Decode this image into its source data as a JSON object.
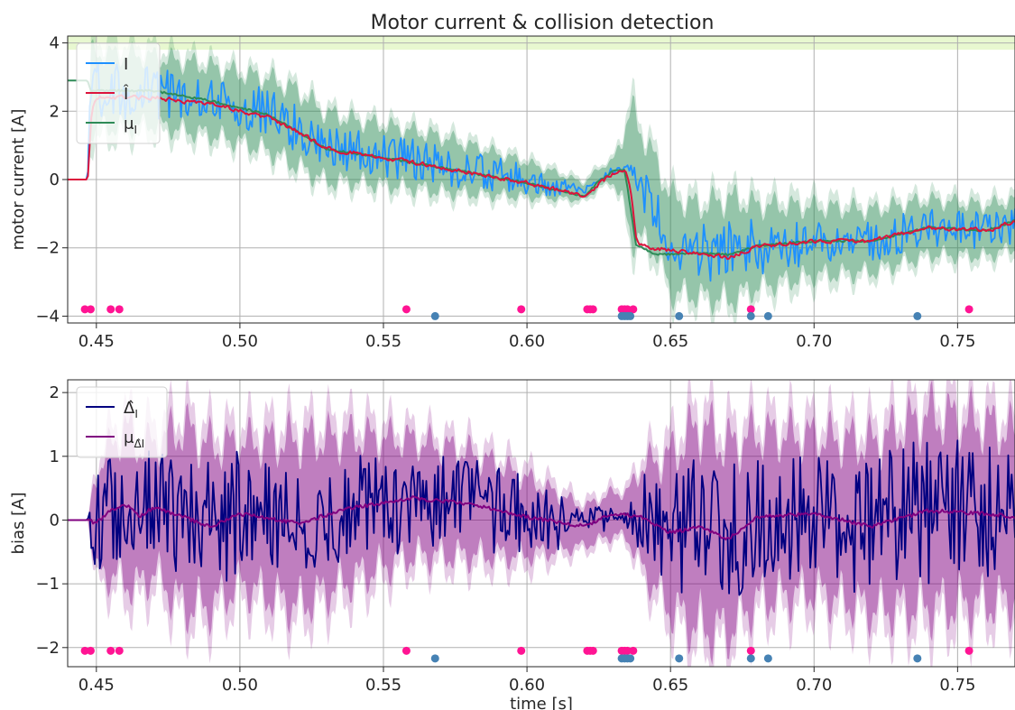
{
  "figure": {
    "title": "Motor current & collision detection"
  },
  "chart_data": [
    {
      "type": "line",
      "title": "Motor current & collision detection",
      "xlabel": "",
      "ylabel": "motor current [A]",
      "xlim": [
        0.44,
        0.77
      ],
      "ylim": [
        -4.2,
        4.2
      ],
      "grid": true,
      "legend_placement": "top-left",
      "x_ticks": [
        0.45,
        0.5,
        0.55,
        0.6,
        0.65,
        0.7,
        0.75
      ],
      "x_tick_labels": [
        "0.45",
        "0.50",
        "0.55",
        "0.60",
        "0.65",
        "0.70",
        "0.75"
      ],
      "y_ticks": [
        -4,
        -2,
        0,
        2,
        4
      ],
      "y_tick_labels": [
        "−4",
        "−2",
        "0",
        "2",
        "4"
      ],
      "threshold_band": {
        "y0": 3.8,
        "y1": 4.2,
        "color": "#e8f8d0"
      },
      "series": [
        {
          "name": "I",
          "color": "#1e90ff"
        },
        {
          "name": "Î",
          "color": "#dc143c"
        },
        {
          "name": "μI",
          "color": "#2e8b57"
        }
      ],
      "legend": [
        {
          "label": "I",
          "color": "#1e90ff"
        },
        {
          "label": "Î",
          "color": "#dc143c"
        },
        {
          "label": "μ",
          "sub": "I",
          "color": "#2e8b57"
        }
      ],
      "anchors": {
        "mean": [
          [
            0.44,
            0
          ],
          [
            0.447,
            0
          ],
          [
            0.448,
            2.6
          ],
          [
            0.47,
            2.6
          ],
          [
            0.49,
            2.3
          ],
          [
            0.51,
            1.9
          ],
          [
            0.52,
            1.5
          ],
          [
            0.53,
            0.95
          ],
          [
            0.56,
            0.6
          ],
          [
            0.6,
            0
          ],
          [
            0.62,
            -0.35
          ],
          [
            0.625,
            0.05
          ],
          [
            0.63,
            0.25
          ],
          [
            0.634,
            0.3
          ],
          [
            0.636,
            0.2
          ],
          [
            0.64,
            -0.2
          ],
          [
            0.645,
            -0.8
          ],
          [
            0.65,
            -1.9
          ],
          [
            0.66,
            -2.1
          ],
          [
            0.67,
            -2.05
          ],
          [
            0.68,
            -1.95
          ],
          [
            0.7,
            -1.8
          ],
          [
            0.72,
            -1.8
          ],
          [
            0.74,
            -1.4
          ],
          [
            0.76,
            -1.5
          ],
          [
            0.77,
            -1.3
          ]
        ],
        "mean_hat": [
          [
            0.44,
            0
          ],
          [
            0.447,
            0
          ],
          [
            0.448,
            2.4
          ],
          [
            0.47,
            2.4
          ],
          [
            0.49,
            2.2
          ],
          [
            0.51,
            1.8
          ],
          [
            0.52,
            1.4
          ],
          [
            0.53,
            0.9
          ],
          [
            0.56,
            0.5
          ],
          [
            0.6,
            -0.1
          ],
          [
            0.62,
            -0.5
          ],
          [
            0.625,
            -0.1
          ],
          [
            0.63,
            0.2
          ],
          [
            0.634,
            0.3
          ],
          [
            0.636,
            -0.5
          ],
          [
            0.638,
            -1.9
          ],
          [
            0.642,
            -2.0
          ],
          [
            0.66,
            -2.15
          ],
          [
            0.67,
            -2.3
          ],
          [
            0.68,
            -1.95
          ],
          [
            0.7,
            -1.8
          ],
          [
            0.72,
            -1.8
          ],
          [
            0.74,
            -1.4
          ],
          [
            0.76,
            -1.5
          ],
          [
            0.77,
            -1.2
          ]
        ],
        "mean_I": [
          [
            0.44,
            2.9
          ],
          [
            0.447,
            2.9
          ],
          [
            0.448,
            2.6
          ],
          [
            0.47,
            2.6
          ],
          [
            0.49,
            2.3
          ],
          [
            0.51,
            1.9
          ],
          [
            0.52,
            1.4
          ],
          [
            0.53,
            0.9
          ],
          [
            0.56,
            0.5
          ],
          [
            0.6,
            -0.1
          ],
          [
            0.62,
            -0.5
          ],
          [
            0.625,
            -0.05
          ],
          [
            0.63,
            0.25
          ],
          [
            0.634,
            0.3
          ],
          [
            0.636,
            -0.8
          ],
          [
            0.638,
            -1.9
          ],
          [
            0.645,
            -2.2
          ],
          [
            0.66,
            -2.15
          ],
          [
            0.67,
            -2.2
          ],
          [
            0.68,
            -1.95
          ],
          [
            0.7,
            -1.8
          ],
          [
            0.72,
            -1.8
          ],
          [
            0.74,
            -1.4
          ],
          [
            0.76,
            -1.5
          ],
          [
            0.77,
            -1.2
          ]
        ],
        "band_inner": [
          [
            0.44,
            0
          ],
          [
            0.447,
            0
          ],
          [
            0.448,
            1.1
          ],
          [
            0.47,
            1.0
          ],
          [
            0.5,
            1.0
          ],
          [
            0.52,
            1.1
          ],
          [
            0.54,
            0.9
          ],
          [
            0.57,
            0.8
          ],
          [
            0.6,
            0.5
          ],
          [
            0.62,
            0.25
          ],
          [
            0.63,
            0.3
          ],
          [
            0.633,
            0.9
          ],
          [
            0.636,
            1.8
          ],
          [
            0.64,
            1.6
          ],
          [
            0.645,
            1.3
          ],
          [
            0.65,
            1.4
          ],
          [
            0.66,
            1.3
          ],
          [
            0.67,
            1.5
          ],
          [
            0.68,
            1.2
          ],
          [
            0.7,
            1.0
          ],
          [
            0.72,
            0.9
          ],
          [
            0.74,
            0.8
          ],
          [
            0.77,
            0.7
          ]
        ],
        "band_outer": [
          [
            0.44,
            0
          ],
          [
            0.447,
            0
          ],
          [
            0.448,
            1.5
          ],
          [
            0.47,
            1.3
          ],
          [
            0.5,
            1.2
          ],
          [
            0.52,
            1.3
          ],
          [
            0.54,
            1.1
          ],
          [
            0.57,
            1.0
          ],
          [
            0.6,
            0.65
          ],
          [
            0.62,
            0.35
          ],
          [
            0.63,
            0.4
          ],
          [
            0.633,
            1.1
          ],
          [
            0.636,
            2.2
          ],
          [
            0.64,
            1.9
          ],
          [
            0.645,
            1.6
          ],
          [
            0.65,
            1.7
          ],
          [
            0.66,
            1.6
          ],
          [
            0.67,
            1.8
          ],
          [
            0.68,
            1.5
          ],
          [
            0.7,
            1.3
          ],
          [
            0.72,
            1.1
          ],
          [
            0.74,
            1.0
          ],
          [
            0.77,
            0.9
          ]
        ],
        "noise_amp": [
          [
            0.44,
            0
          ],
          [
            0.447,
            0
          ],
          [
            0.448,
            0.5
          ],
          [
            0.5,
            0.45
          ],
          [
            0.55,
            0.4
          ],
          [
            0.6,
            0.3
          ],
          [
            0.62,
            0.1
          ],
          [
            0.634,
            0.05
          ],
          [
            0.64,
            0.45
          ],
          [
            0.66,
            0.6
          ],
          [
            0.7,
            0.4
          ],
          [
            0.75,
            0.35
          ],
          [
            0.77,
            0.35
          ]
        ]
      },
      "markers": {
        "pink": {
          "color": "#ff1493",
          "y": -3.8,
          "x": [
            0.446,
            0.448,
            0.455,
            0.458,
            0.558,
            0.598,
            0.621,
            0.622,
            0.623,
            0.633,
            0.634,
            0.635,
            0.637,
            0.678,
            0.754
          ]
        },
        "blue": {
          "color": "#4682b4",
          "y": -4.0,
          "x": [
            0.568,
            0.633,
            0.634,
            0.635,
            0.636,
            0.653,
            0.678,
            0.684,
            0.736
          ]
        }
      }
    },
    {
      "type": "line",
      "title": "",
      "xlabel": "time [s]",
      "ylabel": "bias [A]",
      "xlim": [
        0.44,
        0.77
      ],
      "ylim": [
        -2.3,
        2.2
      ],
      "grid": true,
      "legend_placement": "top-left",
      "x_ticks": [
        0.45,
        0.5,
        0.55,
        0.6,
        0.65,
        0.7,
        0.75
      ],
      "x_tick_labels": [
        "0.45",
        "0.50",
        "0.55",
        "0.60",
        "0.65",
        "0.70",
        "0.75"
      ],
      "y_ticks": [
        -2,
        -1,
        0,
        1,
        2
      ],
      "y_tick_labels": [
        "−2",
        "−1",
        "0",
        "1",
        "2"
      ],
      "series": [
        {
          "name": "Δ̂I",
          "color": "#000080"
        },
        {
          "name": "μΔ̂I",
          "color": "#800080"
        }
      ],
      "legend": [
        {
          "label": "Δ̂",
          "sub": "I",
          "color": "#000080"
        },
        {
          "label": "μ",
          "sub": "Δ̂I",
          "color": "#800080"
        }
      ],
      "anchors": {
        "mean": [
          [
            0.44,
            0
          ],
          [
            0.447,
            0
          ],
          [
            0.45,
            -0.05
          ],
          [
            0.455,
            0.15
          ],
          [
            0.46,
            0.25
          ],
          [
            0.465,
            0.05
          ],
          [
            0.47,
            0.2
          ],
          [
            0.48,
            0.05
          ],
          [
            0.49,
            -0.1
          ],
          [
            0.5,
            0.1
          ],
          [
            0.52,
            -0.05
          ],
          [
            0.54,
            0.2
          ],
          [
            0.56,
            0.35
          ],
          [
            0.58,
            0.25
          ],
          [
            0.6,
            0.05
          ],
          [
            0.62,
            -0.1
          ],
          [
            0.63,
            0.1
          ],
          [
            0.64,
            0.05
          ],
          [
            0.65,
            -0.2
          ],
          [
            0.66,
            -0.1
          ],
          [
            0.67,
            -0.3
          ],
          [
            0.68,
            0.05
          ],
          [
            0.7,
            0.1
          ],
          [
            0.72,
            -0.1
          ],
          [
            0.74,
            0.15
          ],
          [
            0.76,
            0.1
          ],
          [
            0.77,
            0.05
          ]
        ],
        "noise_amp": [
          [
            0.44,
            0
          ],
          [
            0.447,
            0
          ],
          [
            0.449,
            0.5
          ],
          [
            0.47,
            0.6
          ],
          [
            0.5,
            0.6
          ],
          [
            0.55,
            0.5
          ],
          [
            0.6,
            0.45
          ],
          [
            0.62,
            0.15
          ],
          [
            0.635,
            0.15
          ],
          [
            0.64,
            0.4
          ],
          [
            0.66,
            0.7
          ],
          [
            0.7,
            0.6
          ],
          [
            0.75,
            0.75
          ],
          [
            0.77,
            0.7
          ]
        ],
        "band_inner": [
          [
            0.44,
            0
          ],
          [
            0.447,
            0
          ],
          [
            0.45,
            0.8
          ],
          [
            0.46,
            1.2
          ],
          [
            0.47,
            1.0
          ],
          [
            0.48,
            1.4
          ],
          [
            0.5,
            1.1
          ],
          [
            0.52,
            1.3
          ],
          [
            0.54,
            1.1
          ],
          [
            0.56,
            0.9
          ],
          [
            0.58,
            0.8
          ],
          [
            0.6,
            0.6
          ],
          [
            0.62,
            0.3
          ],
          [
            0.635,
            0.35
          ],
          [
            0.64,
            0.8
          ],
          [
            0.65,
            1.2
          ],
          [
            0.66,
            1.6
          ],
          [
            0.68,
            1.3
          ],
          [
            0.7,
            1.2
          ],
          [
            0.72,
            1.3
          ],
          [
            0.74,
            1.5
          ],
          [
            0.76,
            1.4
          ],
          [
            0.77,
            1.3
          ]
        ],
        "band_outer": [
          [
            0.44,
            0
          ],
          [
            0.447,
            0
          ],
          [
            0.45,
            1.0
          ],
          [
            0.46,
            1.5
          ],
          [
            0.47,
            1.3
          ],
          [
            0.48,
            1.7
          ],
          [
            0.5,
            1.4
          ],
          [
            0.52,
            1.6
          ],
          [
            0.54,
            1.4
          ],
          [
            0.56,
            1.1
          ],
          [
            0.58,
            1.0
          ],
          [
            0.6,
            0.8
          ],
          [
            0.62,
            0.4
          ],
          [
            0.635,
            0.45
          ],
          [
            0.64,
            1.0
          ],
          [
            0.65,
            1.5
          ],
          [
            0.66,
            1.95
          ],
          [
            0.68,
            1.6
          ],
          [
            0.7,
            1.5
          ],
          [
            0.72,
            1.6
          ],
          [
            0.74,
            1.85
          ],
          [
            0.76,
            1.7
          ],
          [
            0.77,
            1.6
          ]
        ]
      },
      "markers": {
        "pink": {
          "color": "#ff1493",
          "y": -2.05,
          "x": [
            0.446,
            0.448,
            0.455,
            0.458,
            0.558,
            0.598,
            0.621,
            0.622,
            0.623,
            0.633,
            0.634,
            0.635,
            0.637,
            0.678,
            0.754
          ]
        },
        "blue": {
          "color": "#4682b4",
          "y": -2.17,
          "x": [
            0.568,
            0.633,
            0.634,
            0.635,
            0.636,
            0.653,
            0.678,
            0.684,
            0.736
          ]
        }
      }
    }
  ]
}
